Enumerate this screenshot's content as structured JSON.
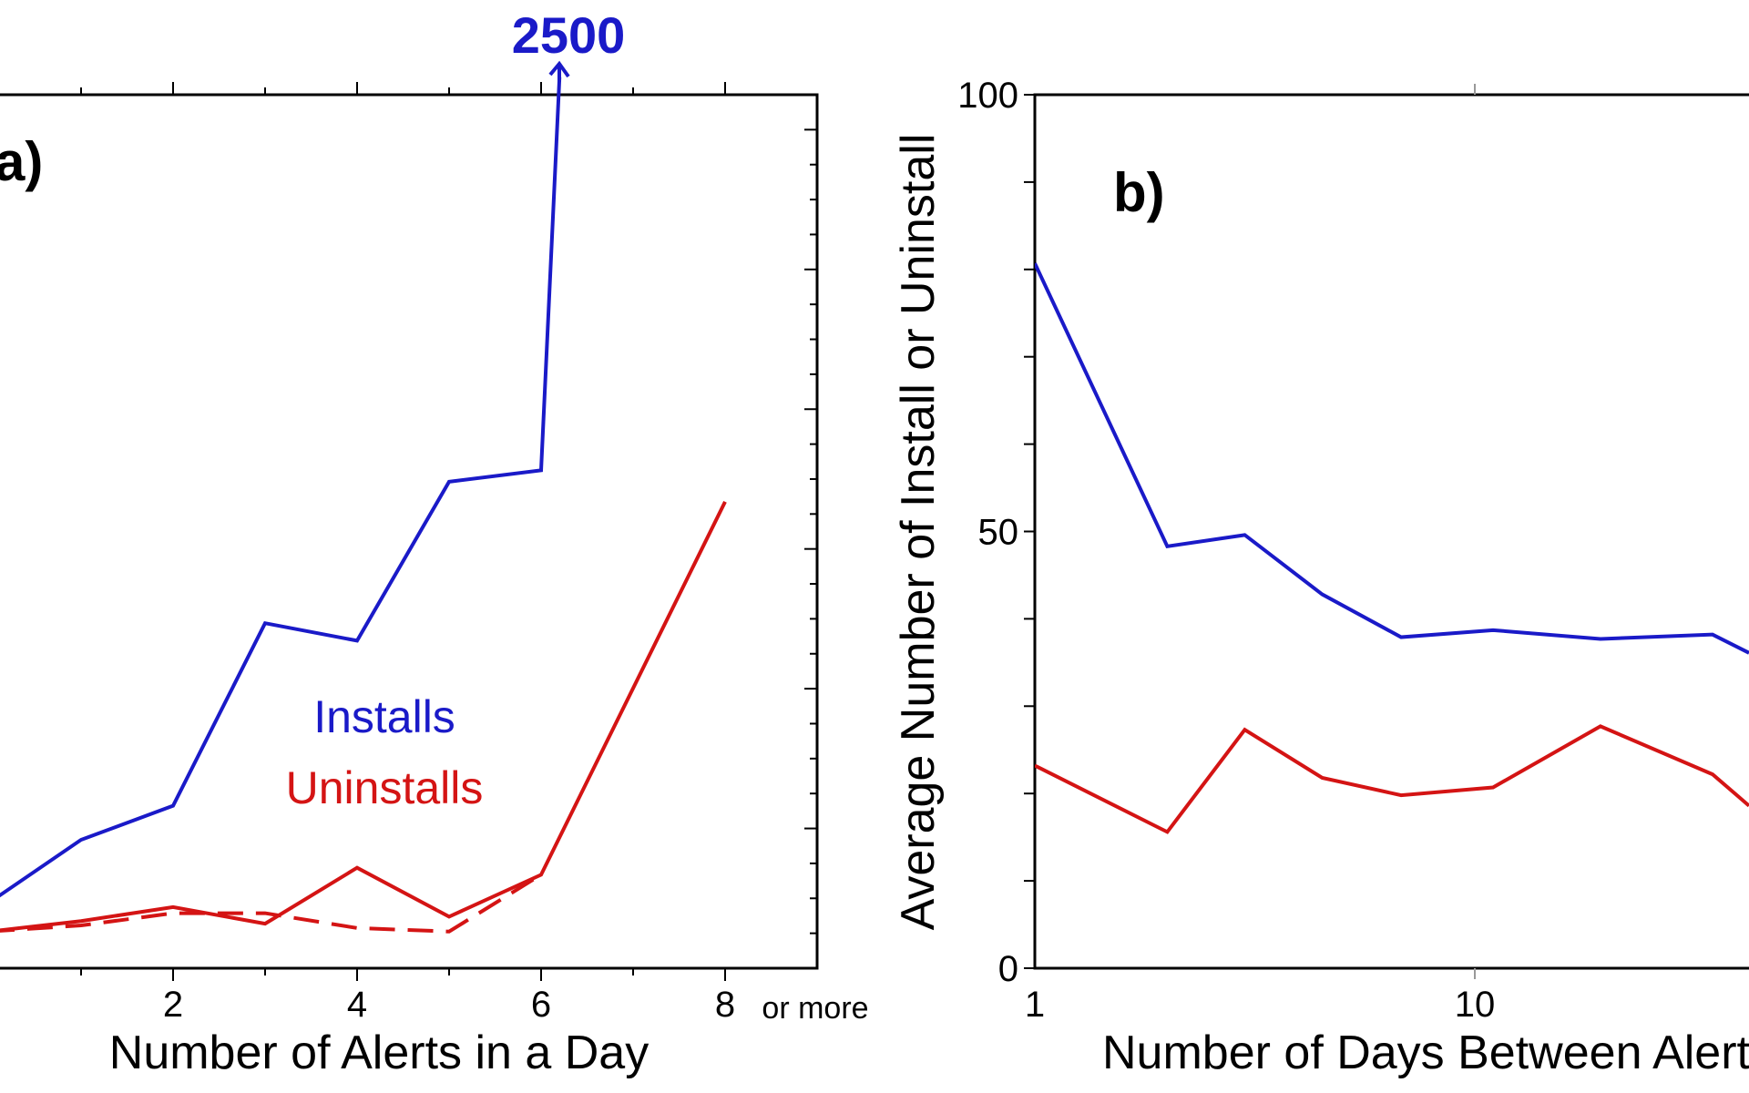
{
  "chart_data": [
    {
      "type": "line",
      "panel_label": "a)",
      "xlabel": "Number of Alerts in a Day",
      "ylabel": "",
      "x_ticks": [
        "2",
        "4",
        "6",
        "8"
      ],
      "x_tick_values": [
        2,
        4,
        6,
        8
      ],
      "x_last_suffix": "or more",
      "xlim": [
        0,
        9
      ],
      "ylim": [
        0,
        100
      ],
      "annotation": "2500",
      "legend": [
        "Installs",
        "Uninstalls"
      ],
      "series": [
        {
          "name": "Installs",
          "color": "#1a1ac8",
          "style": "solid",
          "x": [
            0,
            1,
            2,
            3,
            4,
            5,
            6,
            6.2
          ],
          "y": [
            7.5,
            14.7,
            18.6,
            39.5,
            37.5,
            55.7,
            57.0,
            102
          ]
        },
        {
          "name": "Uninstalls",
          "color": "#d41414",
          "style": "solid",
          "x": [
            0,
            1,
            2,
            3,
            4,
            5,
            6,
            8
          ],
          "y": [
            4.2,
            5.4,
            7.0,
            5.1,
            11.5,
            5.9,
            10.7,
            53.4
          ]
        },
        {
          "name": "Uninstalls (dashed)",
          "color": "#d41414",
          "style": "dashed",
          "x": [
            0,
            1,
            2,
            3,
            4,
            5,
            6
          ],
          "y": [
            4.2,
            4.9,
            6.3,
            6.3,
            4.6,
            4.2,
            10.7
          ]
        }
      ]
    },
    {
      "type": "line",
      "panel_label": "b)",
      "xlabel": "Number of Days Between Alerts",
      "ylabel": "Average Number of Install or Uninstall",
      "x_scale": "log",
      "x_ticks": [
        "1",
        "10"
      ],
      "x_tick_values": [
        1,
        10
      ],
      "y_ticks": [
        "0",
        "50",
        "100"
      ],
      "y_tick_values": [
        0,
        50,
        100
      ],
      "ylim": [
        0,
        100
      ],
      "series": [
        {
          "name": "Installs",
          "color": "#1a1ac8",
          "style": "solid",
          "x": [
            1,
            2,
            3,
            4.5,
            6.8,
            11,
            19.3,
            34.7,
            42
          ],
          "y": [
            80.7,
            48.3,
            49.6,
            42.8,
            37.9,
            38.7,
            37.7,
            38.2,
            36.1
          ]
        },
        {
          "name": "Uninstalls",
          "color": "#d41414",
          "style": "solid",
          "x": [
            1,
            2,
            3,
            4.5,
            6.8,
            11,
            19.3,
            34.7,
            42
          ],
          "y": [
            23.2,
            15.6,
            27.3,
            21.8,
            19.8,
            20.7,
            27.7,
            22.2,
            18.6
          ]
        }
      ]
    }
  ]
}
